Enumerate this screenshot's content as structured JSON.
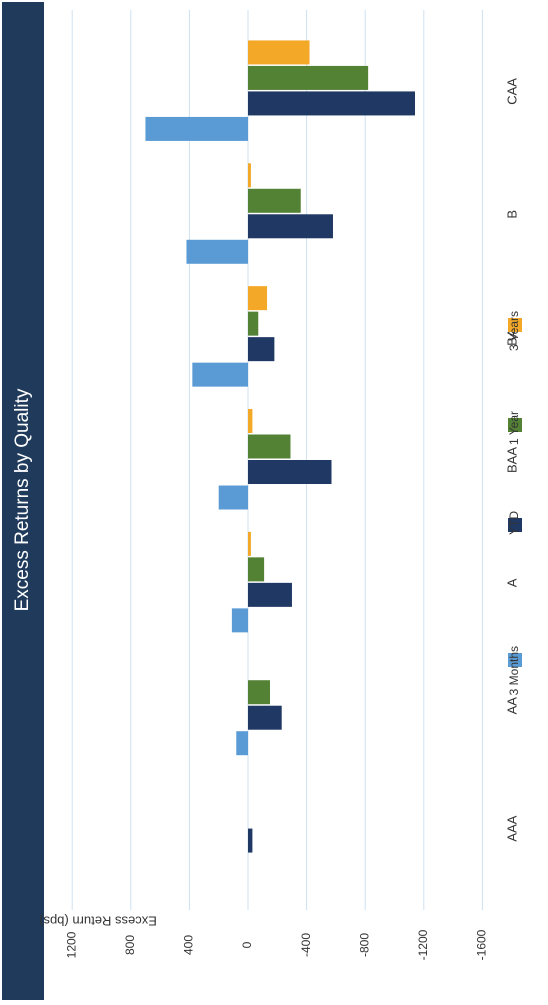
{
  "colors": {
    "title_bar": "#1f3a5b",
    "title_text": "#ffffff",
    "grid": "#cfe0ee",
    "axis_text": "#333333",
    "series": [
      "#5b9bd5",
      "#1f3864",
      "#548235",
      "#f4a827"
    ]
  },
  "chart_data": {
    "type": "bar",
    "orientation": "rotated-90-clockwise",
    "title": "Excess Returns by Quality",
    "ylabel": "Excess Return (bps)",
    "xlabel": "",
    "ylim": [
      -1600,
      1200
    ],
    "yticks": [
      1200,
      800,
      400,
      0,
      -400,
      -800,
      -1200,
      -1600
    ],
    "grid": true,
    "legend_position": "bottom",
    "categories": [
      "AAA",
      "AA",
      "A",
      "BAA",
      "BA",
      "B",
      "CAA"
    ],
    "series": [
      {
        "name": "3 Months",
        "color": "#5b9bd5",
        "values": [
          0,
          80,
          110,
          200,
          380,
          420,
          700
        ]
      },
      {
        "name": "YTD",
        "color": "#1f3864",
        "values": [
          -30,
          -230,
          -300,
          -570,
          -180,
          -580,
          -1140
        ]
      },
      {
        "name": "1 Year",
        "color": "#548235",
        "values": [
          0,
          -150,
          -110,
          -290,
          -70,
          -360,
          -820
        ]
      },
      {
        "name": "3 Years",
        "color": "#f4a827",
        "values": [
          0,
          0,
          -20,
          -30,
          -130,
          -20,
          -420
        ]
      }
    ]
  }
}
